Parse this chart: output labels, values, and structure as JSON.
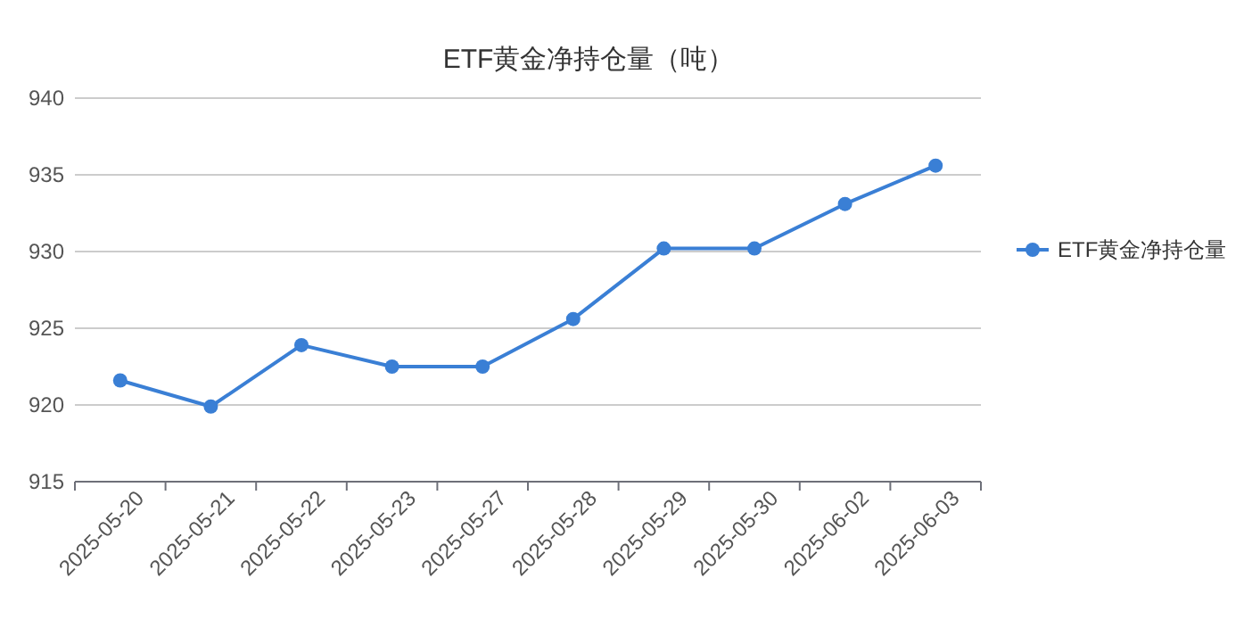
{
  "chart_data": {
    "type": "line",
    "title": "ETF黄金净持仓量（吨）",
    "categories": [
      "2025-05-20",
      "2025-05-21",
      "2025-05-22",
      "2025-05-23",
      "2025-05-27",
      "2025-05-28",
      "2025-05-29",
      "2025-05-30",
      "2025-06-02",
      "2025-06-03"
    ],
    "series": [
      {
        "name": "ETF黄金净持仓量",
        "color": "#3a7fd5",
        "values": [
          921.6,
          919.9,
          923.9,
          922.5,
          922.5,
          925.6,
          930.2,
          930.2,
          933.1,
          935.6
        ]
      }
    ],
    "ylim": [
      915,
      940
    ],
    "yticks": [
      915,
      920,
      925,
      930,
      935,
      940
    ],
    "grid": "y",
    "legend": "right",
    "marker": "circle",
    "line_style": "solid"
  }
}
